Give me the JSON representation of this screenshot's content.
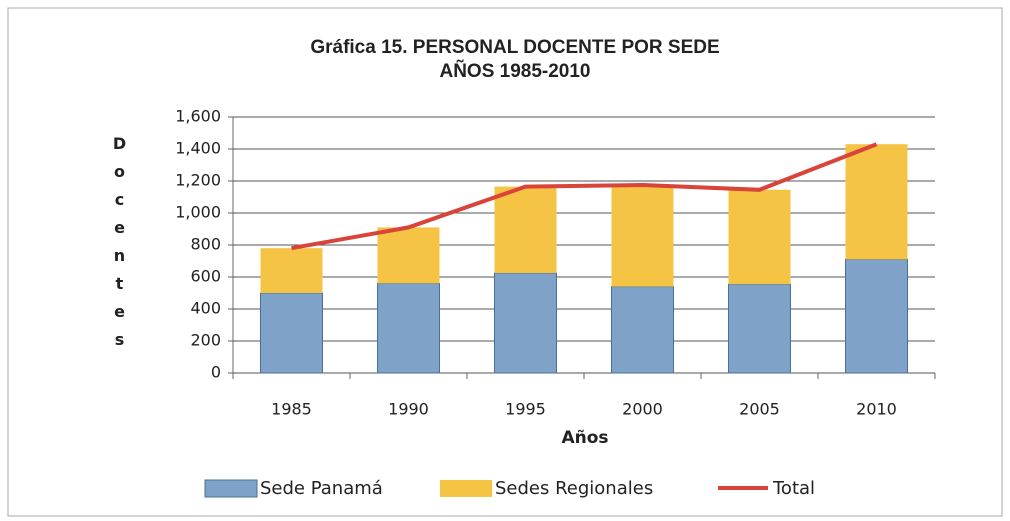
{
  "chart_data": {
    "type": "bar-line",
    "title": "Gráfica 15. PERSONAL DOCENTE POR SEDE",
    "subtitle": "AÑOS 1985-2010",
    "x_label": "Años",
    "y_label": "Docentes",
    "categories": [
      "1985",
      "1990",
      "1995",
      "2000",
      "2005",
      "2010"
    ],
    "series": [
      {
        "name": "Sede Panamá",
        "color": "#7fa3c8",
        "kind": "bar",
        "values": [
          500,
          560,
          625,
          540,
          555,
          710
        ]
      },
      {
        "name": "Sedes Regionales",
        "color": "#f6c445",
        "kind": "bar",
        "values": [
          280,
          350,
          540,
          635,
          590,
          720
        ]
      },
      {
        "name": "Total",
        "color": "#d9433a",
        "kind": "line",
        "values": [
          780,
          910,
          1165,
          1175,
          1145,
          1430
        ]
      }
    ],
    "ylim": [
      0,
      1600
    ],
    "yticks": [
      0,
      200,
      400,
      600,
      800,
      {
        "value": 1000,
        "label": "1,000"
      },
      {
        "value": 1200,
        "label": "1,200"
      },
      {
        "value": 1400,
        "label": "1,400"
      },
      {
        "value": 1600,
        "label": "1,600"
      }
    ],
    "grid": true
  }
}
